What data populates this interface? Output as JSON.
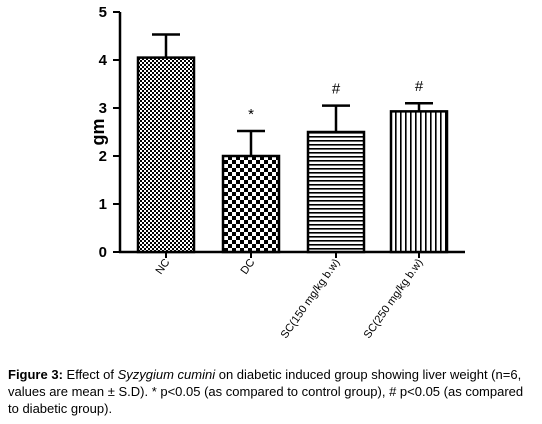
{
  "chart_data": {
    "type": "bar",
    "categories": [
      "NC",
      "DC",
      "SC(150 mg/kg b.w)",
      "SC(250 mg/kg b.w)"
    ],
    "values": [
      4.05,
      2.0,
      2.5,
      2.93
    ],
    "errors": [
      0.48,
      0.52,
      0.55,
      0.17
    ],
    "annotations": [
      "",
      "*",
      "#",
      "#"
    ],
    "ylabel": "gm",
    "xlabel": "",
    "ylim": [
      0,
      5
    ],
    "yticks": [
      "0",
      "1",
      "2",
      "3",
      "4",
      "5"
    ],
    "grid": false,
    "patterns": [
      "checker-fine",
      "checker-bold",
      "horizontal-lines",
      "vertical-lines"
    ]
  },
  "caption": {
    "label": "Figure 3:",
    "text_before": " Effect of ",
    "species": "Syzygium cumini",
    "text_after": " on diabetic induced group showing liver weight (n=6, values are mean ± S.D). * p<0.05 (as compared to control group), # p<0.05 (as compared to diabetic group)."
  }
}
